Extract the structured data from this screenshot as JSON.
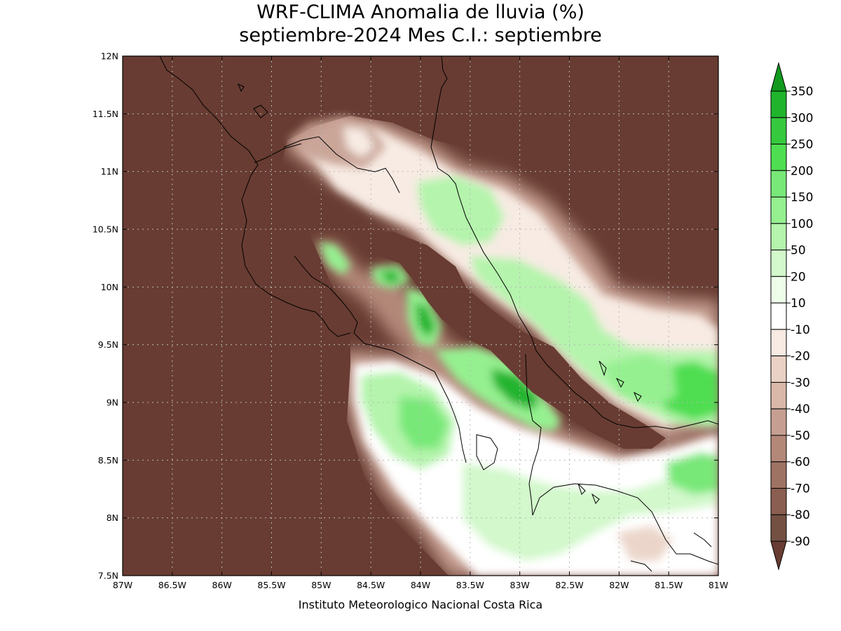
{
  "title": {
    "line1": "WRF-CLIMA Anomalia de lluvia (%)",
    "line2": "septiembre-2024 Mes C.I.: septiembre"
  },
  "credit": "Instituto Meteorologico Nacional Costa Rica",
  "map": {
    "lon_range": [
      -87,
      -81
    ],
    "lat_range": [
      7.5,
      12
    ],
    "lon_ticks": [
      {
        "v": -87,
        "label": "87W"
      },
      {
        "v": -86.5,
        "label": "86.5W"
      },
      {
        "v": -86,
        "label": "86W"
      },
      {
        "v": -85.5,
        "label": "85.5W"
      },
      {
        "v": -85,
        "label": "85W"
      },
      {
        "v": -84.5,
        "label": "84.5W"
      },
      {
        "v": -84,
        "label": "84W"
      },
      {
        "v": -83.5,
        "label": "83.5W"
      },
      {
        "v": -83,
        "label": "83W"
      },
      {
        "v": -82.5,
        "label": "82.5W"
      },
      {
        "v": -82,
        "label": "82W"
      },
      {
        "v": -81.5,
        "label": "81.5W"
      },
      {
        "v": -81,
        "label": "81W"
      }
    ],
    "lat_ticks": [
      {
        "v": 7.5,
        "label": "7.5N"
      },
      {
        "v": 8,
        "label": "8N"
      },
      {
        "v": 8.5,
        "label": "8.5N"
      },
      {
        "v": 9,
        "label": "9N"
      },
      {
        "v": 9.5,
        "label": "9.5N"
      },
      {
        "v": 10,
        "label": "10N"
      },
      {
        "v": 10.5,
        "label": "10.5N"
      },
      {
        "v": 11,
        "label": "11N"
      },
      {
        "v": 11.5,
        "label": "11.5N"
      },
      {
        "v": 12,
        "label": "12N"
      }
    ],
    "gridlines": true,
    "background_color": "#683c32"
  },
  "colorbar": {
    "placement": "right",
    "levels": [
      "350",
      "300",
      "250",
      "200",
      "150",
      "100",
      "50",
      "20",
      "10",
      "-10",
      "-20",
      "-30",
      "-40",
      "-50",
      "-60",
      "-70",
      "-80",
      "-90"
    ],
    "colors": [
      "#119a1e",
      "#20b42d",
      "#35c93e",
      "#4fde51",
      "#78e878",
      "#95f090",
      "#b4f4ac",
      "#d2f8cb",
      "#eefcea",
      "#ffffff",
      "#f7ebe3",
      "#e9d1c5",
      "#d9b8aa",
      "#c69f92",
      "#b38879",
      "#9f7364",
      "#8a5e50",
      "#745043",
      "#683c32"
    ]
  }
}
